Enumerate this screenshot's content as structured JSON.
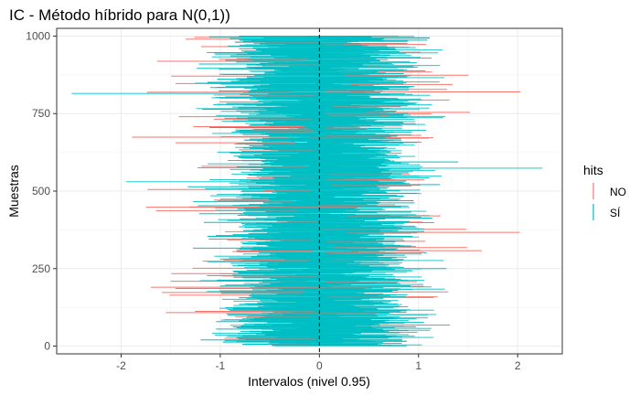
{
  "chart_data": {
    "type": "interval",
    "title": "IC - Método híbrido para N(0,1))",
    "xlabel": "Intervalos (nivel 0.95)",
    "ylabel": "Muestras",
    "xlim": [
      -2.65,
      2.45
    ],
    "ylim": [
      -25,
      1025
    ],
    "x_ticks": [
      -2,
      -1,
      0,
      1,
      2
    ],
    "x_tick_labels": [
      "-2",
      "-1",
      "0",
      "1",
      "2"
    ],
    "y_ticks": [
      0,
      250,
      500,
      750,
      1000
    ],
    "y_tick_labels": [
      "0",
      "250",
      "500",
      "750",
      "1000"
    ],
    "reference_line_x": 0,
    "grid": true,
    "n_samples": 1000,
    "legend": {
      "title": "hits",
      "position": "right",
      "entries": [
        {
          "label": "NO",
          "color": "#F8766D"
        },
        {
          "label": "SÍ",
          "color": "#00BFC4"
        }
      ]
    },
    "highlighted_intervals": [
      {
        "sample": 815,
        "lower": -2.5,
        "upper": 0.3,
        "hit": "SÍ"
      },
      {
        "sample": 574,
        "lower": -0.25,
        "upper": 2.25,
        "hit": "SÍ"
      },
      {
        "sample": 530,
        "lower": -1.95,
        "upper": 0.6,
        "hit": "SÍ"
      },
      {
        "sample": 448,
        "lower": -1.75,
        "upper": 0.4,
        "hit": "NO"
      },
      {
        "sample": 190,
        "lower": -1.7,
        "upper": 0.5,
        "hit": "NO"
      },
      {
        "sample": 108,
        "lower": -1.55,
        "upper": 0.6,
        "hit": "NO"
      },
      {
        "sample": 594,
        "lower": -0.1,
        "upper": 1.4,
        "hit": "SÍ"
      },
      {
        "sample": 175,
        "lower": -0.1,
        "upper": 1.3,
        "hit": "NO"
      },
      {
        "sample": 672,
        "lower": -0.1,
        "upper": 1.15,
        "hit": "NO"
      },
      {
        "sample": 990,
        "lower": -1.35,
        "upper": 0.1,
        "hit": "NO"
      }
    ]
  }
}
